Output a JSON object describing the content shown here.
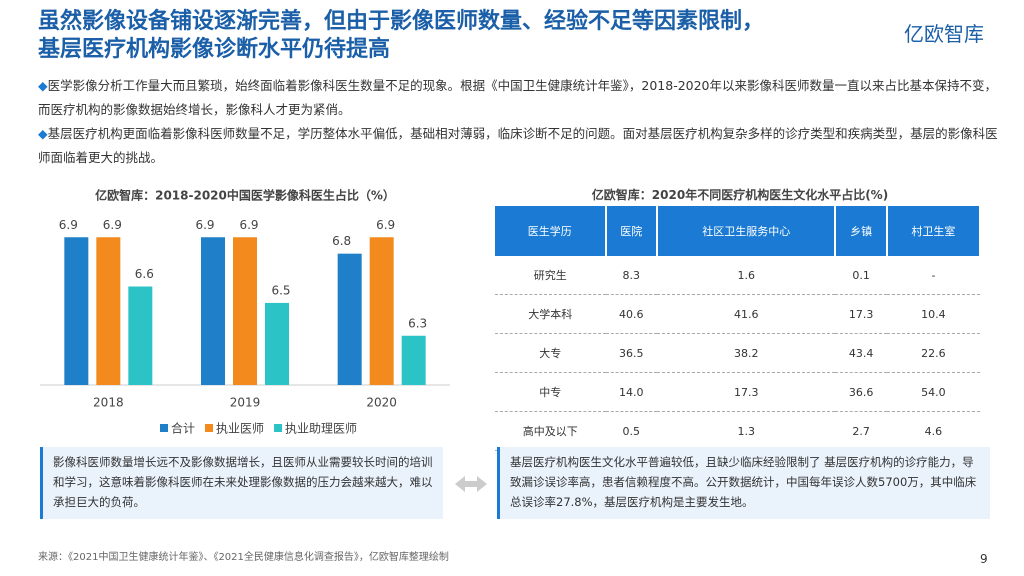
{
  "header": {
    "title_lines": [
      "虽然影像设备铺设逐渐完善，但由于影像医师数量、经验不足等因素限制，",
      "基层医疗机构影像诊断水平仍待提高"
    ],
    "logo": "亿欧智库"
  },
  "bullets": [
    "医学影像分析工作量大而且繁琐，始终面临着影像科医生数量不足的现象。根据《中国卫生健康统计年鉴》，2018-2020年以来影像科医师数量一直以来占比基本保持不变，而医疗机构的影像数据始终增长，影像科人才更为紧俏。",
    "基层医疗机构更面临着影像科医师数量不足，学历整体水平偏低，基础相对薄弱，临床诊断不足的问题。面对基层医疗机构复杂多样的诊疗类型和疾病类型，基层的影像科医师面临着更大的挑战。"
  ],
  "chart_data": {
    "type": "bar",
    "title": "亿欧智库：2018-2020中国医学影像科医生占比（%）",
    "categories": [
      "2018",
      "2019",
      "2020"
    ],
    "series": [
      {
        "name": "合计",
        "color": "#1f7fc8",
        "values": [
          6.9,
          6.9,
          6.8
        ]
      },
      {
        "name": "执业医师",
        "color": "#f28a1e",
        "values": [
          6.9,
          6.9,
          6.9
        ]
      },
      {
        "name": "执业助理医师",
        "color": "#2cc3c6",
        "values": [
          6.6,
          6.5,
          6.3
        ]
      }
    ],
    "ylim": [
      6,
      7.2
    ],
    "legend": "bottom"
  },
  "table": {
    "title": "亿欧智库：2020年不同医疗机构医生文化水平占比(%)",
    "header": [
      "医生学历",
      "医院",
      "社区卫生服务中心",
      "乡镇",
      "村卫生室"
    ],
    "rows": [
      [
        "研究生",
        "8.3",
        "1.6",
        "0.1",
        "-"
      ],
      [
        "大学本科",
        "40.6",
        "41.6",
        "17.3",
        "10.4"
      ],
      [
        "大专",
        "36.5",
        "38.2",
        "43.4",
        "22.6"
      ],
      [
        "中专",
        "14.0",
        "17.3",
        "36.6",
        "54.0"
      ],
      [
        "高中及以下",
        "0.5",
        "1.3",
        "2.7",
        "4.6"
      ]
    ]
  },
  "notes": [
    "影像科医师数量增长远不及影像数据增长，且医师从业需要较长时间的培训和学习，这意味着影像科医师在未来处理影像数据的压力会越来越大，难以承担巨大的负荷。",
    "基层医疗机构医生文化水平普遍较低，且缺少临床经验限制了 基层医疗机构的诊疗能力，导致漏诊误诊率高，患者信赖程度不高。公开数据统计，中国每年误诊人数5700万，其中临床总误诊率27.8%，基层医疗机构是主要发生地。"
  ],
  "source": "来源：《2021中国卫生健康统计年鉴》、《2021全民健康信息化调查报告》，亿欧智库整理绘制",
  "page_number": "9"
}
